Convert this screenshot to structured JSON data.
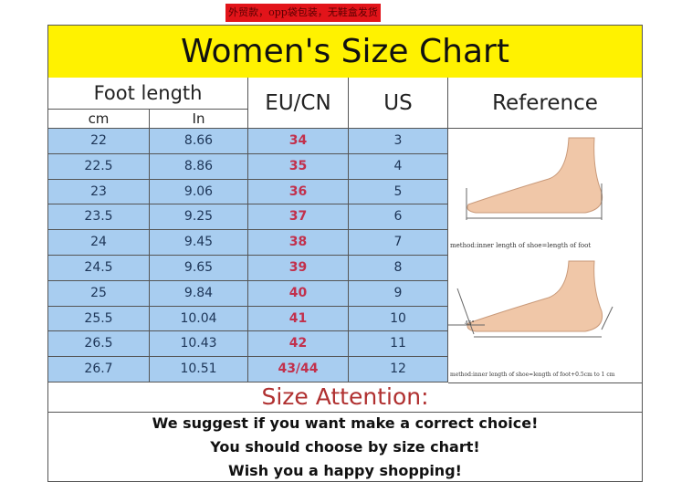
{
  "banner": "外贸款，opp袋包装，无鞋盒发货",
  "title": "Women's Size Chart",
  "headers": {
    "foot_length": "Foot length",
    "cm": "cm",
    "in": "In",
    "eu": "EU/CN",
    "us": "US",
    "reference": "Reference"
  },
  "rows": [
    {
      "cm": "22",
      "in": "8.66",
      "eu": "34",
      "us": "3"
    },
    {
      "cm": "22.5",
      "in": "8.86",
      "eu": "35",
      "us": "4"
    },
    {
      "cm": "23",
      "in": "9.06",
      "eu": "36",
      "us": "5"
    },
    {
      "cm": "23.5",
      "in": "9.25",
      "eu": "37",
      "us": "6"
    },
    {
      "cm": "24",
      "in": "9.45",
      "eu": "38",
      "us": "7"
    },
    {
      "cm": "24.5",
      "in": "9.65",
      "eu": "39",
      "us": "8"
    },
    {
      "cm": "25",
      "in": "9.84",
      "eu": "40",
      "us": "9"
    },
    {
      "cm": "25.5",
      "in": "10.04",
      "eu": "41",
      "us": "10"
    },
    {
      "cm": "26.5",
      "in": "10.43",
      "eu": "42",
      "us": "11"
    },
    {
      "cm": "26.7",
      "in": "10.51",
      "eu": "43/44",
      "us": "12"
    }
  ],
  "reference": {
    "caption1": "method:inner length of shoe=length of foot",
    "caption2": "method:inner length of shoe=length of foot+0.5cm to 1 cm",
    "angle": "45°"
  },
  "attention": "Size Attention:",
  "messages": [
    "We suggest if you want make a correct choice!",
    "You should choose by size chart!",
    "Wish you a happy shopping!"
  ]
}
